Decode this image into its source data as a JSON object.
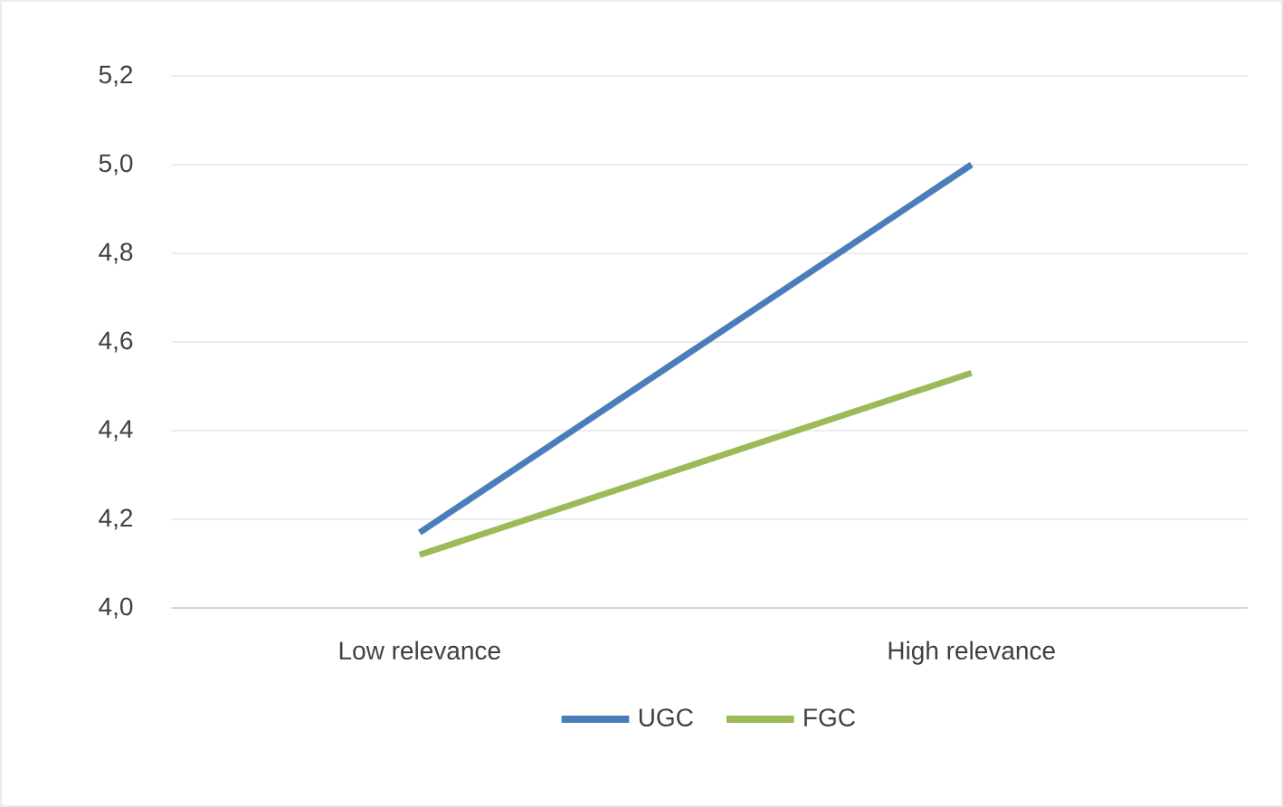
{
  "chart_data": {
    "type": "line",
    "categories": [
      "Low relevance",
      "High relevance"
    ],
    "series": [
      {
        "name": "UGC",
        "color": "#4a7ebb",
        "values": [
          4.17,
          5.0
        ]
      },
      {
        "name": "FGC",
        "color": "#9bbb59",
        "values": [
          4.12,
          4.53
        ]
      }
    ],
    "ylim": [
      4.0,
      5.2
    ],
    "yticks": [
      {
        "value": 4.0,
        "label": "4,0"
      },
      {
        "value": 4.2,
        "label": "4,2"
      },
      {
        "value": 4.4,
        "label": "4,4"
      },
      {
        "value": 4.6,
        "label": "4,6"
      },
      {
        "value": 4.8,
        "label": "4,8"
      },
      {
        "value": 5.0,
        "label": "5,0"
      },
      {
        "value": 5.2,
        "label": "5,2"
      }
    ],
    "grid": "y",
    "legend": "bottom",
    "marker": "none",
    "line_style": "solid"
  }
}
